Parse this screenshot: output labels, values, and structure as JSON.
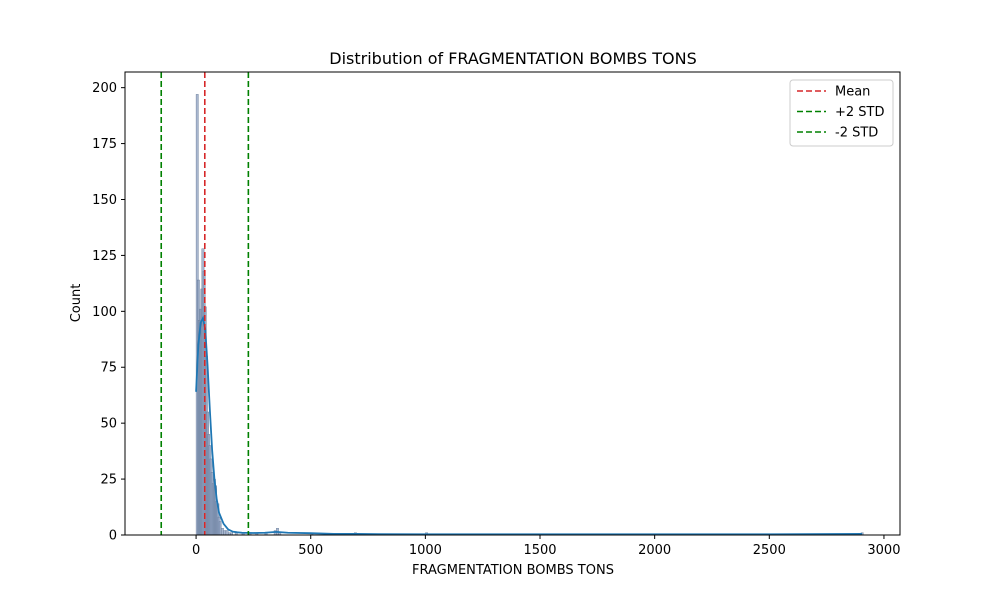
{
  "chart_data": {
    "type": "histogram",
    "title": "Distribution of FRAGMENTATION BOMBS TONS",
    "xlabel": "FRAGMENTATION BOMBS TONS",
    "ylabel": "Count",
    "xlim": [
      -310,
      3070
    ],
    "ylim": [
      0,
      207
    ],
    "xticks": [
      0,
      500,
      1000,
      1500,
      2000,
      2500,
      3000
    ],
    "yticks": [
      0,
      25,
      50,
      75,
      100,
      125,
      150,
      175,
      200
    ],
    "grid": false,
    "legend_position": "top-right",
    "bin_width": 10,
    "bins": [
      {
        "x": 0,
        "count": 197
      },
      {
        "x": 5,
        "count": 114
      },
      {
        "x": 10,
        "count": 96
      },
      {
        "x": 15,
        "count": 101
      },
      {
        "x": 20,
        "count": 110
      },
      {
        "x": 25,
        "count": 128
      },
      {
        "x": 30,
        "count": 118
      },
      {
        "x": 35,
        "count": 102
      },
      {
        "x": 40,
        "count": 80
      },
      {
        "x": 45,
        "count": 55
      },
      {
        "x": 50,
        "count": 45
      },
      {
        "x": 55,
        "count": 40
      },
      {
        "x": 60,
        "count": 34
      },
      {
        "x": 65,
        "count": 28
      },
      {
        "x": 70,
        "count": 23
      },
      {
        "x": 75,
        "count": 25
      },
      {
        "x": 80,
        "count": 22
      },
      {
        "x": 85,
        "count": 15
      },
      {
        "x": 90,
        "count": 14
      },
      {
        "x": 95,
        "count": 8
      },
      {
        "x": 100,
        "count": 6
      },
      {
        "x": 110,
        "count": 3
      },
      {
        "x": 120,
        "count": 2
      },
      {
        "x": 130,
        "count": 2
      },
      {
        "x": 140,
        "count": 1
      },
      {
        "x": 150,
        "count": 1
      },
      {
        "x": 170,
        "count": 1
      },
      {
        "x": 200,
        "count": 1
      },
      {
        "x": 230,
        "count": 1
      },
      {
        "x": 260,
        "count": 1
      },
      {
        "x": 300,
        "count": 1
      },
      {
        "x": 340,
        "count": 2
      },
      {
        "x": 350,
        "count": 3
      },
      {
        "x": 360,
        "count": 1
      },
      {
        "x": 500,
        "count": 1
      },
      {
        "x": 690,
        "count": 1
      },
      {
        "x": 1000,
        "count": 1
      },
      {
        "x": 2900,
        "count": 1
      }
    ],
    "kde": {
      "name": "KDE",
      "x": [
        0,
        10,
        20,
        30,
        40,
        50,
        60,
        70,
        80,
        90,
        100,
        120,
        140,
        160,
        180,
        200,
        250,
        300,
        350,
        400,
        500,
        600,
        700,
        800,
        1000,
        1500,
        2000,
        2500,
        2905
      ],
      "y": [
        64,
        85,
        95,
        97,
        92,
        76,
        56,
        38,
        25,
        16,
        10,
        5,
        2.5,
        1.5,
        1.2,
        1.0,
        0.9,
        1.0,
        1.4,
        1.0,
        0.8,
        0.5,
        0.5,
        0.4,
        0.3,
        0.3,
        0.3,
        0.3,
        0.5
      ]
    },
    "reference_lines": [
      {
        "label": "Mean",
        "x": 38,
        "color": "#d62728"
      },
      {
        "label": "+2 STD",
        "x": 228,
        "color": "#008000"
      },
      {
        "label": "-2 STD",
        "x": -152,
        "color": "#008000"
      }
    ],
    "colors": {
      "bar_fill": "#8c9fbf",
      "bar_edge": "#5f7492",
      "kde_line": "#1f77b4"
    }
  }
}
